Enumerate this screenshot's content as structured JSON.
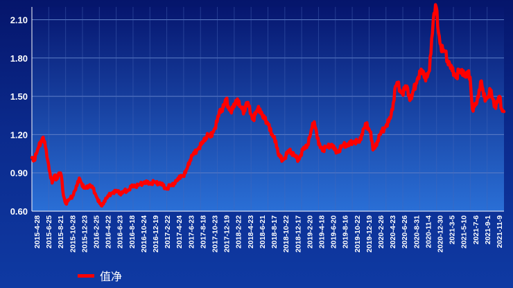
{
  "chart_data": {
    "type": "line",
    "title": "",
    "xlabel": "",
    "ylabel": "",
    "ylim": [
      0.6,
      2.2
    ],
    "y_ticks": [
      "0.60",
      "0.90",
      "1.20",
      "1.50",
      "1.80",
      "2.10"
    ],
    "x_ticks": [
      "2015-4-28",
      "2015-6-25",
      "2015-8-21",
      "2015-10-28",
      "2015-12-23",
      "2016-2-25",
      "2016-4-22",
      "2016-6-23",
      "2016-8-18",
      "2016-10-24",
      "2016-12-19",
      "2017-2-22",
      "2017-4-24",
      "2017-6-23",
      "2017-8-18",
      "2017-10-23",
      "2017-12-19",
      "2018-2-22",
      "2018-4-23",
      "2018-6-21",
      "2018-8-17",
      "2018-10-22",
      "2018-12-17",
      "2019-2-20",
      "2019-4-18",
      "2019-6-20",
      "2019-8-16",
      "2019-10-22",
      "2019-12-19",
      "2020-2-26",
      "2020-4-23",
      "2020-6-26",
      "2020-8-31",
      "2020-11-4",
      "2020-12-30",
      "2021-3-5",
      "2021-5-10",
      "2021-7-6",
      "2021-9-1",
      "2021-11-9"
    ],
    "grid": true,
    "legend_position": "bottom-left",
    "series": [
      {
        "name": "值净",
        "color": "#ff0000",
        "values": [
          1.02,
          1.0,
          1.05,
          1.1,
          1.15,
          1.18,
          1.1,
          1.0,
          0.9,
          0.82,
          0.88,
          0.85,
          0.9,
          0.88,
          0.72,
          0.66,
          0.68,
          0.7,
          0.72,
          0.76,
          0.8,
          0.86,
          0.82,
          0.78,
          0.78,
          0.8,
          0.8,
          0.78,
          0.74,
          0.7,
          0.66,
          0.64,
          0.68,
          0.7,
          0.72,
          0.74,
          0.75,
          0.75,
          0.76,
          0.74,
          0.74,
          0.76,
          0.76,
          0.77,
          0.79,
          0.8,
          0.8,
          0.8,
          0.81,
          0.82,
          0.83,
          0.82,
          0.82,
          0.82,
          0.83,
          0.82,
          0.82,
          0.82,
          0.8,
          0.78,
          0.78,
          0.8,
          0.8,
          0.82,
          0.84,
          0.85,
          0.88,
          0.88,
          0.9,
          0.95,
          1.0,
          1.04,
          1.05,
          1.08,
          1.1,
          1.12,
          1.15,
          1.18,
          1.2,
          1.18,
          1.22,
          1.25,
          1.3,
          1.38,
          1.4,
          1.42,
          1.48,
          1.42,
          1.38,
          1.4,
          1.45,
          1.48,
          1.42,
          1.4,
          1.38,
          1.45,
          1.42,
          1.36,
          1.32,
          1.36,
          1.4,
          1.4,
          1.35,
          1.32,
          1.3,
          1.28,
          1.2,
          1.18,
          1.15,
          1.05,
          1.02,
          1.0,
          1.02,
          1.05,
          1.08,
          1.06,
          1.04,
          1.02,
          1.0,
          1.04,
          1.08,
          1.1,
          1.12,
          1.18,
          1.25,
          1.3,
          1.22,
          1.12,
          1.1,
          1.08,
          1.1,
          1.1,
          1.12,
          1.12,
          1.08,
          1.06,
          1.08,
          1.1,
          1.12,
          1.12,
          1.12,
          1.13,
          1.14,
          1.15,
          1.14,
          1.14,
          1.2,
          1.25,
          1.28,
          1.25,
          1.22,
          1.08,
          1.1,
          1.15,
          1.2,
          1.22,
          1.25,
          1.28,
          1.3,
          1.35,
          1.45,
          1.58,
          1.6,
          1.55,
          1.52,
          1.55,
          1.58,
          1.5,
          1.48,
          1.55,
          1.6,
          1.65,
          1.68,
          1.7,
          1.65,
          1.65,
          1.7,
          1.95,
          2.15,
          2.2,
          2.0,
          1.9,
          1.85,
          1.85,
          1.78,
          1.75,
          1.7,
          1.68,
          1.65,
          1.7,
          1.68,
          1.7,
          1.65,
          1.68,
          1.65,
          1.4,
          1.42,
          1.45,
          1.55,
          1.62,
          1.5,
          1.48,
          1.5,
          1.55,
          1.48,
          1.42,
          1.45,
          1.5,
          1.4,
          1.38
        ]
      }
    ]
  }
}
